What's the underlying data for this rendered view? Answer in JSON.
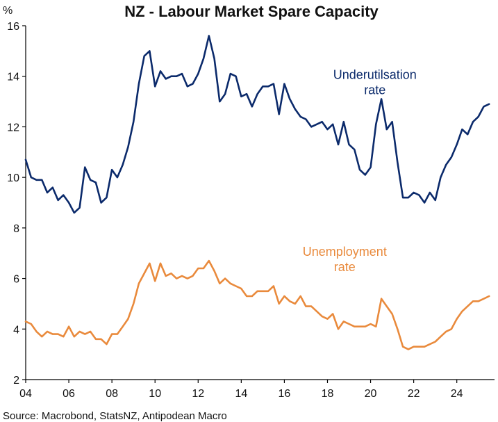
{
  "chart_data": {
    "type": "line",
    "title": "NZ - Labour Market Spare Capacity",
    "ylabel": "%",
    "source": "Source: Macrobond, StatsNZ, Antipodean Macro",
    "xlim": [
      2004,
      2025.75
    ],
    "ylim": [
      2,
      16
    ],
    "xticks": [
      {
        "v": 2004,
        "label": "04"
      },
      {
        "v": 2006,
        "label": "06"
      },
      {
        "v": 2008,
        "label": "08"
      },
      {
        "v": 2010,
        "label": "10"
      },
      {
        "v": 2012,
        "label": "12"
      },
      {
        "v": 2014,
        "label": "14"
      },
      {
        "v": 2016,
        "label": "16"
      },
      {
        "v": 2018,
        "label": "18"
      },
      {
        "v": 2020,
        "label": "20"
      },
      {
        "v": 2022,
        "label": "22"
      },
      {
        "v": 2024,
        "label": "24"
      }
    ],
    "yticks": [
      2,
      4,
      6,
      8,
      10,
      12,
      14,
      16
    ],
    "colors": {
      "underutilisation": "#0b2a6b",
      "unemployment": "#e98a3c"
    },
    "series": [
      {
        "key": "underutilisation",
        "label_lines": [
          "Underutilsation",
          "rate"
        ],
        "label_at": [
          2020.2,
          13.9
        ],
        "points": [
          [
            2004.0,
            10.7
          ],
          [
            2004.25,
            10.0
          ],
          [
            2004.5,
            9.9
          ],
          [
            2004.75,
            9.9
          ],
          [
            2005.0,
            9.4
          ],
          [
            2005.25,
            9.6
          ],
          [
            2005.5,
            9.1
          ],
          [
            2005.75,
            9.3
          ],
          [
            2006.0,
            9.0
          ],
          [
            2006.25,
            8.6
          ],
          [
            2006.5,
            8.8
          ],
          [
            2006.75,
            10.4
          ],
          [
            2007.0,
            9.9
          ],
          [
            2007.25,
            9.8
          ],
          [
            2007.5,
            9.0
          ],
          [
            2007.75,
            9.2
          ],
          [
            2008.0,
            10.3
          ],
          [
            2008.25,
            10.0
          ],
          [
            2008.5,
            10.5
          ],
          [
            2008.75,
            11.2
          ],
          [
            2009.0,
            12.2
          ],
          [
            2009.25,
            13.7
          ],
          [
            2009.5,
            14.8
          ],
          [
            2009.75,
            15.0
          ],
          [
            2010.0,
            13.6
          ],
          [
            2010.25,
            14.2
          ],
          [
            2010.5,
            13.9
          ],
          [
            2010.75,
            14.0
          ],
          [
            2011.0,
            14.0
          ],
          [
            2011.25,
            14.1
          ],
          [
            2011.5,
            13.6
          ],
          [
            2011.75,
            13.7
          ],
          [
            2012.0,
            14.1
          ],
          [
            2012.25,
            14.7
          ],
          [
            2012.5,
            15.6
          ],
          [
            2012.75,
            14.7
          ],
          [
            2013.0,
            13.0
          ],
          [
            2013.25,
            13.3
          ],
          [
            2013.5,
            14.1
          ],
          [
            2013.75,
            14.0
          ],
          [
            2014.0,
            13.2
          ],
          [
            2014.25,
            13.3
          ],
          [
            2014.5,
            12.8
          ],
          [
            2014.75,
            13.3
          ],
          [
            2015.0,
            13.6
          ],
          [
            2015.25,
            13.6
          ],
          [
            2015.5,
            13.7
          ],
          [
            2015.75,
            12.5
          ],
          [
            2016.0,
            13.7
          ],
          [
            2016.25,
            13.1
          ],
          [
            2016.5,
            12.7
          ],
          [
            2016.75,
            12.4
          ],
          [
            2017.0,
            12.3
          ],
          [
            2017.25,
            12.0
          ],
          [
            2017.5,
            12.1
          ],
          [
            2017.75,
            12.2
          ],
          [
            2018.0,
            11.9
          ],
          [
            2018.25,
            12.1
          ],
          [
            2018.5,
            11.3
          ],
          [
            2018.75,
            12.2
          ],
          [
            2019.0,
            11.3
          ],
          [
            2019.25,
            11.1
          ],
          [
            2019.5,
            10.3
          ],
          [
            2019.75,
            10.1
          ],
          [
            2020.0,
            10.4
          ],
          [
            2020.25,
            12.1
          ],
          [
            2020.5,
            13.1
          ],
          [
            2020.75,
            11.9
          ],
          [
            2021.0,
            12.2
          ],
          [
            2021.25,
            10.6
          ],
          [
            2021.5,
            9.2
          ],
          [
            2021.75,
            9.2
          ],
          [
            2022.0,
            9.4
          ],
          [
            2022.25,
            9.3
          ],
          [
            2022.5,
            9.0
          ],
          [
            2022.75,
            9.4
          ],
          [
            2023.0,
            9.1
          ],
          [
            2023.25,
            10.0
          ],
          [
            2023.5,
            10.5
          ],
          [
            2023.75,
            10.8
          ],
          [
            2024.0,
            11.3
          ],
          [
            2024.25,
            11.9
          ],
          [
            2024.5,
            11.7
          ],
          [
            2024.75,
            12.2
          ],
          [
            2025.0,
            12.4
          ],
          [
            2025.25,
            12.8
          ],
          [
            2025.5,
            12.9
          ]
        ]
      },
      {
        "key": "unemployment",
        "label_lines": [
          "Unemployment",
          "rate"
        ],
        "label_at": [
          2018.8,
          6.9
        ],
        "points": [
          [
            2004.0,
            4.3
          ],
          [
            2004.25,
            4.2
          ],
          [
            2004.5,
            3.9
          ],
          [
            2004.75,
            3.7
          ],
          [
            2005.0,
            3.9
          ],
          [
            2005.25,
            3.8
          ],
          [
            2005.5,
            3.8
          ],
          [
            2005.75,
            3.7
          ],
          [
            2006.0,
            4.1
          ],
          [
            2006.25,
            3.7
          ],
          [
            2006.5,
            3.9
          ],
          [
            2006.75,
            3.8
          ],
          [
            2007.0,
            3.9
          ],
          [
            2007.25,
            3.6
          ],
          [
            2007.5,
            3.6
          ],
          [
            2007.75,
            3.4
          ],
          [
            2008.0,
            3.8
          ],
          [
            2008.25,
            3.8
          ],
          [
            2008.5,
            4.1
          ],
          [
            2008.75,
            4.4
          ],
          [
            2009.0,
            5.0
          ],
          [
            2009.25,
            5.8
          ],
          [
            2009.5,
            6.2
          ],
          [
            2009.75,
            6.6
          ],
          [
            2010.0,
            5.9
          ],
          [
            2010.25,
            6.6
          ],
          [
            2010.5,
            6.1
          ],
          [
            2010.75,
            6.2
          ],
          [
            2011.0,
            6.0
          ],
          [
            2011.25,
            6.1
          ],
          [
            2011.5,
            6.0
          ],
          [
            2011.75,
            6.1
          ],
          [
            2012.0,
            6.4
          ],
          [
            2012.25,
            6.4
          ],
          [
            2012.5,
            6.7
          ],
          [
            2012.75,
            6.3
          ],
          [
            2013.0,
            5.8
          ],
          [
            2013.25,
            6.0
          ],
          [
            2013.5,
            5.8
          ],
          [
            2013.75,
            5.7
          ],
          [
            2014.0,
            5.6
          ],
          [
            2014.25,
            5.3
          ],
          [
            2014.5,
            5.3
          ],
          [
            2014.75,
            5.5
          ],
          [
            2015.0,
            5.5
          ],
          [
            2015.25,
            5.5
          ],
          [
            2015.5,
            5.7
          ],
          [
            2015.75,
            5.0
          ],
          [
            2016.0,
            5.3
          ],
          [
            2016.25,
            5.1
          ],
          [
            2016.5,
            5.0
          ],
          [
            2016.75,
            5.3
          ],
          [
            2017.0,
            4.9
          ],
          [
            2017.25,
            4.9
          ],
          [
            2017.5,
            4.7
          ],
          [
            2017.75,
            4.5
          ],
          [
            2018.0,
            4.4
          ],
          [
            2018.25,
            4.6
          ],
          [
            2018.5,
            4.0
          ],
          [
            2018.75,
            4.3
          ],
          [
            2019.0,
            4.2
          ],
          [
            2019.25,
            4.1
          ],
          [
            2019.5,
            4.1
          ],
          [
            2019.75,
            4.1
          ],
          [
            2020.0,
            4.2
          ],
          [
            2020.25,
            4.1
          ],
          [
            2020.5,
            5.2
          ],
          [
            2020.75,
            4.9
          ],
          [
            2021.0,
            4.6
          ],
          [
            2021.25,
            4.0
          ],
          [
            2021.5,
            3.3
          ],
          [
            2021.75,
            3.2
          ],
          [
            2022.0,
            3.3
          ],
          [
            2022.25,
            3.3
          ],
          [
            2022.5,
            3.3
          ],
          [
            2022.75,
            3.4
          ],
          [
            2023.0,
            3.5
          ],
          [
            2023.25,
            3.7
          ],
          [
            2023.5,
            3.9
          ],
          [
            2023.75,
            4.0
          ],
          [
            2024.0,
            4.4
          ],
          [
            2024.25,
            4.7
          ],
          [
            2024.5,
            4.9
          ],
          [
            2024.75,
            5.1
          ],
          [
            2025.0,
            5.1
          ],
          [
            2025.25,
            5.2
          ],
          [
            2025.5,
            5.3
          ]
        ]
      }
    ]
  }
}
